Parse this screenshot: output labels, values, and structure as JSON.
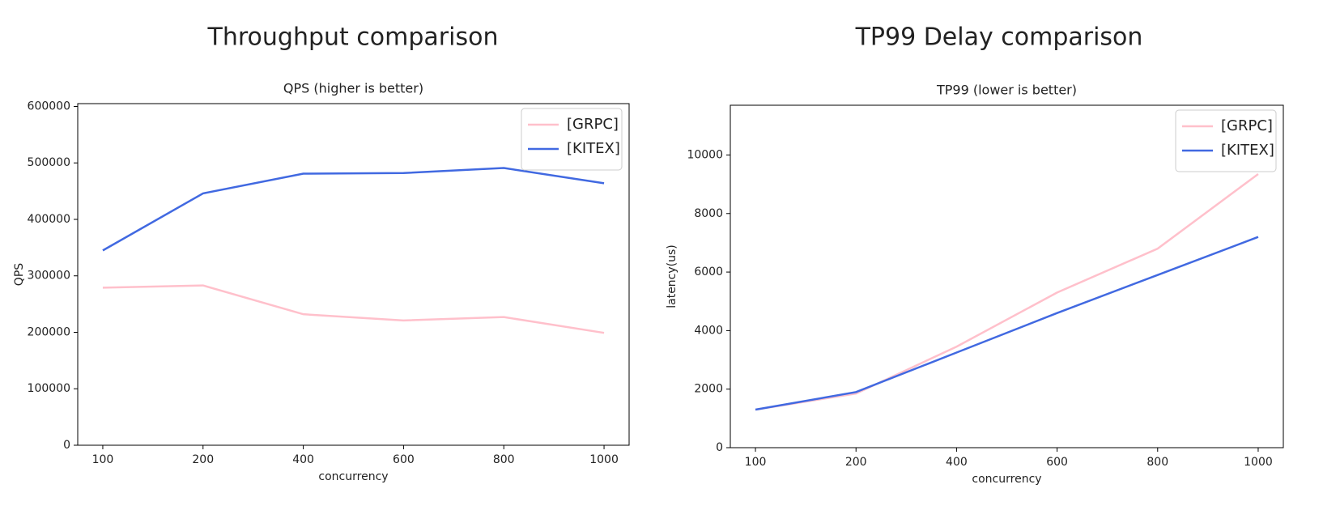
{
  "chart_data": [
    {
      "type": "line",
      "heading": "Throughput comparison",
      "title": "QPS (higher is better)",
      "xlabel": "concurrency",
      "ylabel": "QPS",
      "categories": [
        "100",
        "200",
        "400",
        "600",
        "800",
        "1000"
      ],
      "series": [
        {
          "name": "[GRPC]",
          "color": "#ffc0cb",
          "values": [
            279000,
            283000,
            232000,
            221000,
            227000,
            199000
          ]
        },
        {
          "name": "[KITEX]",
          "color": "#4169e1",
          "values": [
            345000,
            446000,
            481000,
            482000,
            491000,
            464000
          ]
        }
      ],
      "ylim": [
        0,
        605000
      ],
      "yticks": [
        0,
        100000,
        200000,
        300000,
        400000,
        500000,
        600000
      ],
      "legend": "upper right"
    },
    {
      "type": "line",
      "heading": "TP99 Delay comparison",
      "title": "TP99 (lower is better)",
      "xlabel": "concurrency",
      "ylabel": "latency(us)",
      "categories": [
        "100",
        "200",
        "400",
        "600",
        "800",
        "1000"
      ],
      "series": [
        {
          "name": "[GRPC]",
          "color": "#ffc0cb",
          "values": [
            1300,
            1850,
            3450,
            5300,
            6800,
            9350
          ]
        },
        {
          "name": "[KITEX]",
          "color": "#4169e1",
          "values": [
            1300,
            1900,
            3250,
            4600,
            5900,
            7200
          ]
        }
      ],
      "ylim": [
        0,
        11700
      ],
      "yticks": [
        0,
        2000,
        4000,
        6000,
        8000,
        10000
      ],
      "legend": "upper right"
    }
  ]
}
